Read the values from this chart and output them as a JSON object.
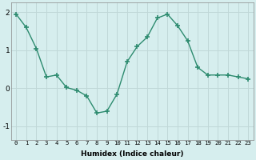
{
  "xlabel": "Humidex (Indice chaleur)",
  "ylabel": "",
  "x_values": [
    0,
    1,
    2,
    3,
    4,
    5,
    6,
    7,
    8,
    9,
    10,
    11,
    12,
    13,
    14,
    15,
    16,
    17,
    18,
    19,
    20,
    21,
    22,
    23
  ],
  "y_values": [
    1.95,
    1.6,
    1.05,
    0.3,
    0.35,
    0.02,
    -0.05,
    -0.2,
    -0.65,
    -0.6,
    -0.15,
    0.7,
    1.1,
    1.35,
    1.85,
    1.95,
    1.65,
    1.25,
    0.55,
    0.35,
    0.35,
    0.35,
    0.3,
    0.25
  ],
  "line_color": "#2d8b6f",
  "marker": "+",
  "marker_size": 5,
  "marker_lw": 1.2,
  "bg_color": "#d6eeee",
  "grid_color": "#c0d8d8",
  "ylim": [
    -1.35,
    2.25
  ],
  "yticks": [
    -1,
    0,
    1,
    2
  ],
  "xlim": [
    -0.5,
    23.5
  ],
  "xtick_fontsize": 5.2,
  "ytick_fontsize": 6.5,
  "xlabel_fontsize": 6.5,
  "linewidth": 1.0
}
